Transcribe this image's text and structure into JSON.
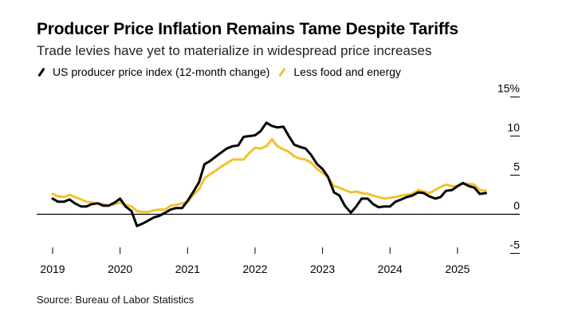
{
  "title": "Producer Price Inflation Remains Tame Despite Tariffs",
  "subtitle": "Trade levies have yet to materialize in widespread price increases",
  "source": "Source: Bureau of Labor Statistics",
  "colors": {
    "series1": "#000000",
    "series2": "#f2c12e",
    "axis": "#000000"
  },
  "chart_data": {
    "type": "line",
    "title": "Producer Price Inflation Remains Tame Despite Tariffs",
    "subtitle": "Trade levies have yet to materialize in widespread price increases",
    "xlabel": "",
    "ylabel": "",
    "ylim": [
      -5,
      15
    ],
    "yticks": [
      15,
      10,
      5,
      0,
      -5
    ],
    "ytick_labels": [
      "15%",
      "10",
      "5",
      "0",
      "-5"
    ],
    "xticks": [
      2019,
      2020,
      2021,
      2022,
      2023,
      2024,
      2025
    ],
    "xtick_labels": [
      "2019",
      "2020",
      "2021",
      "2022",
      "2023",
      "2024",
      "2025"
    ],
    "xlim": [
      2019.0,
      2025.45
    ],
    "legend_position": "top-left",
    "series": [
      {
        "name": "US producer price index (12-month change)",
        "color": "#000000",
        "points": [
          [
            2019.0,
            2.0
          ],
          [
            2019.08,
            1.6
          ],
          [
            2019.17,
            1.6
          ],
          [
            2019.25,
            1.9
          ],
          [
            2019.33,
            1.4
          ],
          [
            2019.42,
            1.0
          ],
          [
            2019.5,
            1.0
          ],
          [
            2019.58,
            1.3
          ],
          [
            2019.67,
            1.4
          ],
          [
            2019.75,
            1.1
          ],
          [
            2019.83,
            1.1
          ],
          [
            2019.92,
            1.5
          ],
          [
            2020.0,
            2.0
          ],
          [
            2020.08,
            1.0
          ],
          [
            2020.17,
            0.4
          ],
          [
            2020.25,
            -1.5
          ],
          [
            2020.33,
            -1.2
          ],
          [
            2020.42,
            -0.8
          ],
          [
            2020.5,
            -0.4
          ],
          [
            2020.58,
            -0.2
          ],
          [
            2020.67,
            0.2
          ],
          [
            2020.75,
            0.6
          ],
          [
            2020.83,
            0.8
          ],
          [
            2020.92,
            0.8
          ],
          [
            2021.0,
            1.7
          ],
          [
            2021.08,
            2.8
          ],
          [
            2021.17,
            4.1
          ],
          [
            2021.25,
            6.4
          ],
          [
            2021.33,
            6.8
          ],
          [
            2021.42,
            7.4
          ],
          [
            2021.5,
            7.9
          ],
          [
            2021.58,
            8.4
          ],
          [
            2021.67,
            8.7
          ],
          [
            2021.75,
            8.8
          ],
          [
            2021.83,
            9.9
          ],
          [
            2021.92,
            10.0
          ],
          [
            2022.0,
            10.1
          ],
          [
            2022.08,
            10.6
          ],
          [
            2022.17,
            11.7
          ],
          [
            2022.25,
            11.3
          ],
          [
            2022.33,
            11.1
          ],
          [
            2022.42,
            11.2
          ],
          [
            2022.5,
            10.0
          ],
          [
            2022.58,
            8.9
          ],
          [
            2022.67,
            8.6
          ],
          [
            2022.75,
            8.4
          ],
          [
            2022.83,
            7.6
          ],
          [
            2022.92,
            6.4
          ],
          [
            2023.0,
            5.8
          ],
          [
            2023.08,
            4.8
          ],
          [
            2023.17,
            2.8
          ],
          [
            2023.25,
            2.4
          ],
          [
            2023.33,
            1.1
          ],
          [
            2023.42,
            0.2
          ],
          [
            2023.5,
            1.0
          ],
          [
            2023.58,
            2.0
          ],
          [
            2023.67,
            2.0
          ],
          [
            2023.75,
            1.3
          ],
          [
            2023.83,
            0.9
          ],
          [
            2023.92,
            1.0
          ],
          [
            2024.0,
            1.0
          ],
          [
            2024.08,
            1.6
          ],
          [
            2024.17,
            1.9
          ],
          [
            2024.25,
            2.2
          ],
          [
            2024.33,
            2.4
          ],
          [
            2024.42,
            2.8
          ],
          [
            2024.5,
            2.7
          ],
          [
            2024.58,
            2.3
          ],
          [
            2024.67,
            2.0
          ],
          [
            2024.75,
            2.2
          ],
          [
            2024.83,
            3.0
          ],
          [
            2024.92,
            3.1
          ],
          [
            2025.0,
            3.6
          ],
          [
            2025.08,
            4.0
          ],
          [
            2025.17,
            3.6
          ],
          [
            2025.25,
            3.4
          ],
          [
            2025.33,
            2.6
          ],
          [
            2025.42,
            2.7
          ]
        ]
      },
      {
        "name": "Less food and energy",
        "color": "#f2c12e",
        "points": [
          [
            2019.0,
            2.6
          ],
          [
            2019.08,
            2.3
          ],
          [
            2019.17,
            2.2
          ],
          [
            2019.25,
            2.5
          ],
          [
            2019.33,
            2.2
          ],
          [
            2019.42,
            1.9
          ],
          [
            2019.5,
            1.6
          ],
          [
            2019.58,
            1.5
          ],
          [
            2019.67,
            1.4
          ],
          [
            2019.75,
            1.3
          ],
          [
            2019.83,
            1.1
          ],
          [
            2019.92,
            1.3
          ],
          [
            2020.0,
            1.5
          ],
          [
            2020.08,
            1.2
          ],
          [
            2020.17,
            1.0
          ],
          [
            2020.25,
            0.4
          ],
          [
            2020.33,
            0.3
          ],
          [
            2020.42,
            0.3
          ],
          [
            2020.5,
            0.5
          ],
          [
            2020.58,
            0.6
          ],
          [
            2020.67,
            0.6
          ],
          [
            2020.75,
            1.1
          ],
          [
            2020.83,
            1.2
          ],
          [
            2020.92,
            1.4
          ],
          [
            2021.0,
            1.6
          ],
          [
            2021.08,
            2.4
          ],
          [
            2021.17,
            3.2
          ],
          [
            2021.25,
            4.6
          ],
          [
            2021.33,
            5.1
          ],
          [
            2021.42,
            5.6
          ],
          [
            2021.5,
            6.1
          ],
          [
            2021.58,
            6.5
          ],
          [
            2021.67,
            7.0
          ],
          [
            2021.75,
            7.0
          ],
          [
            2021.83,
            7.0
          ],
          [
            2021.92,
            7.9
          ],
          [
            2022.0,
            8.5
          ],
          [
            2022.08,
            8.4
          ],
          [
            2022.17,
            8.7
          ],
          [
            2022.25,
            9.6
          ],
          [
            2022.33,
            8.7
          ],
          [
            2022.42,
            8.3
          ],
          [
            2022.5,
            8.0
          ],
          [
            2022.58,
            7.4
          ],
          [
            2022.67,
            7.1
          ],
          [
            2022.75,
            7.0
          ],
          [
            2022.83,
            6.6
          ],
          [
            2022.92,
            5.8
          ],
          [
            2023.0,
            5.3
          ],
          [
            2023.08,
            4.7
          ],
          [
            2023.17,
            3.6
          ],
          [
            2023.25,
            3.4
          ],
          [
            2023.33,
            3.1
          ],
          [
            2023.42,
            2.8
          ],
          [
            2023.5,
            2.9
          ],
          [
            2023.58,
            2.7
          ],
          [
            2023.67,
            2.6
          ],
          [
            2023.75,
            2.4
          ],
          [
            2023.83,
            2.2
          ],
          [
            2023.92,
            2.0
          ],
          [
            2024.0,
            2.1
          ],
          [
            2024.08,
            2.2
          ],
          [
            2024.17,
            2.4
          ],
          [
            2024.25,
            2.5
          ],
          [
            2024.33,
            2.6
          ],
          [
            2024.42,
            3.1
          ],
          [
            2024.5,
            2.9
          ],
          [
            2024.58,
            2.7
          ],
          [
            2024.67,
            3.1
          ],
          [
            2024.75,
            3.5
          ],
          [
            2024.83,
            3.8
          ],
          [
            2024.92,
            3.6
          ],
          [
            2025.0,
            3.6
          ],
          [
            2025.08,
            3.9
          ],
          [
            2025.17,
            3.9
          ],
          [
            2025.25,
            3.8
          ],
          [
            2025.33,
            3.1
          ],
          [
            2025.42,
            3.0
          ]
        ]
      }
    ]
  }
}
